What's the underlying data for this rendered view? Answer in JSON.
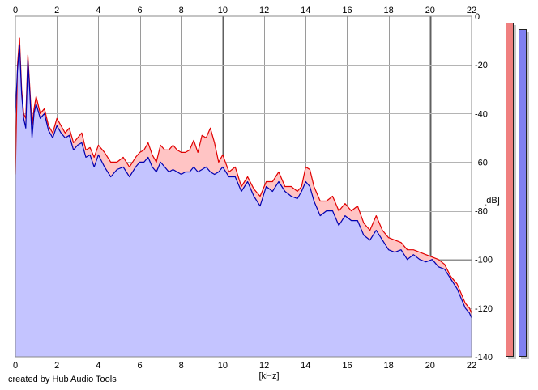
{
  "chart_data": {
    "type": "area",
    "x_label": "[kHz]",
    "y_label": "[dB]",
    "xlim": [
      0,
      22
    ],
    "ylim": [
      -140,
      0
    ],
    "x_ticks": [
      0,
      2,
      4,
      6,
      8,
      10,
      12,
      14,
      16,
      18,
      20,
      22
    ],
    "x_tick_labels": [
      "0",
      "2",
      "4",
      "6",
      "8",
      "10",
      "12",
      "14",
      "16",
      "18",
      "20",
      "22"
    ],
    "y_ticks": [
      0,
      -20,
      -40,
      -60,
      -80,
      -100,
      -120,
      -140
    ],
    "y_tick_labels": [
      "0",
      "-20",
      "-40",
      "-60",
      "-80",
      "-100",
      "-120",
      "-140"
    ],
    "grid": true,
    "x_ticks_top": true,
    "y_axis_side": "right",
    "series": [
      {
        "color": "#e00000",
        "fill": "#ffc4c4",
        "x": [
          0,
          0.1,
          0.2,
          0.3,
          0.4,
          0.5,
          0.6,
          0.7,
          0.8,
          0.9,
          1.0,
          1.2,
          1.4,
          1.6,
          1.8,
          2.0,
          2.2,
          2.4,
          2.6,
          2.8,
          3.0,
          3.2,
          3.4,
          3.6,
          3.8,
          4.0,
          4.3,
          4.6,
          4.9,
          5.2,
          5.5,
          5.8,
          6.0,
          6.2,
          6.4,
          6.6,
          6.8,
          7.0,
          7.2,
          7.4,
          7.6,
          7.8,
          8.0,
          8.2,
          8.4,
          8.6,
          8.8,
          9.0,
          9.2,
          9.4,
          9.6,
          9.8,
          10.0,
          10.3,
          10.6,
          10.9,
          11.2,
          11.5,
          11.8,
          12.1,
          12.4,
          12.7,
          13.0,
          13.3,
          13.6,
          13.8,
          14.0,
          14.2,
          14.4,
          14.7,
          15.0,
          15.3,
          15.6,
          15.9,
          16.2,
          16.5,
          16.8,
          17.1,
          17.4,
          17.7,
          18.0,
          18.3,
          18.6,
          18.9,
          19.2,
          19.5,
          19.8,
          20.1,
          20.4,
          20.7,
          21.0,
          21.3,
          21.5,
          21.7,
          21.9,
          22.0
        ],
        "y": [
          -65,
          -20,
          -9,
          -30,
          -40,
          -42,
          -16,
          -30,
          -45,
          -38,
          -33,
          -40,
          -38,
          -45,
          -48,
          -42,
          -45,
          -48,
          -46,
          -52,
          -50,
          -48,
          -55,
          -54,
          -58,
          -53,
          -56,
          -60,
          -60,
          -58,
          -62,
          -58,
          -56,
          -55,
          -52,
          -57,
          -60,
          -53,
          -55,
          -55,
          -53,
          -55,
          -56,
          -56,
          -55,
          -51,
          -56,
          -49,
          -50,
          -46,
          -52,
          -60,
          -57,
          -64,
          -62,
          -70,
          -66,
          -71,
          -74,
          -68,
          -68,
          -64,
          -70,
          -70,
          -72,
          -70,
          -62,
          -63,
          -70,
          -76,
          -76,
          -74,
          -80,
          -77,
          -80,
          -78,
          -85,
          -88,
          -82,
          -88,
          -91,
          -92,
          -93,
          -96,
          -96,
          -97,
          -98,
          -99,
          -100,
          -102,
          -107,
          -110,
          -114,
          -118,
          -120,
          -122
        ]
      },
      {
        "color": "#0000b0",
        "fill": "#c4c4ff",
        "x": [
          0,
          0.1,
          0.2,
          0.3,
          0.4,
          0.5,
          0.6,
          0.7,
          0.8,
          0.9,
          1.0,
          1.2,
          1.4,
          1.6,
          1.8,
          2.0,
          2.2,
          2.4,
          2.6,
          2.8,
          3.0,
          3.2,
          3.4,
          3.6,
          3.8,
          4.0,
          4.3,
          4.6,
          4.9,
          5.2,
          5.5,
          5.8,
          6.0,
          6.2,
          6.4,
          6.6,
          6.8,
          7.0,
          7.2,
          7.4,
          7.6,
          7.8,
          8.0,
          8.2,
          8.4,
          8.6,
          8.8,
          9.0,
          9.2,
          9.4,
          9.6,
          9.8,
          10.0,
          10.3,
          10.6,
          10.9,
          11.2,
          11.5,
          11.8,
          12.1,
          12.4,
          12.7,
          13.0,
          13.3,
          13.6,
          13.8,
          14.0,
          14.2,
          14.4,
          14.7,
          15.0,
          15.3,
          15.6,
          15.9,
          16.2,
          16.5,
          16.8,
          17.1,
          17.4,
          17.7,
          18.0,
          18.3,
          18.6,
          18.9,
          19.2,
          19.5,
          19.8,
          20.1,
          20.4,
          20.7,
          21.0,
          21.3,
          21.5,
          21.7,
          21.9,
          22.0
        ],
        "y": [
          -40,
          -22,
          -12,
          -32,
          -42,
          -46,
          -18,
          -32,
          -50,
          -40,
          -36,
          -42,
          -40,
          -47,
          -50,
          -45,
          -48,
          -50,
          -49,
          -55,
          -53,
          -52,
          -58,
          -57,
          -62,
          -57,
          -62,
          -66,
          -63,
          -62,
          -66,
          -62,
          -60,
          -60,
          -58,
          -62,
          -64,
          -60,
          -62,
          -64,
          -63,
          -64,
          -65,
          -64,
          -64,
          -62,
          -64,
          -63,
          -62,
          -64,
          -65,
          -64,
          -62,
          -66,
          -66,
          -72,
          -68,
          -74,
          -78,
          -70,
          -72,
          -68,
          -72,
          -74,
          -75,
          -72,
          -68,
          -70,
          -76,
          -82,
          -80,
          -80,
          -86,
          -82,
          -84,
          -84,
          -90,
          -92,
          -88,
          -92,
          -96,
          -97,
          -96,
          -100,
          -98,
          -100,
          -101,
          -100,
          -103,
          -104,
          -108,
          -112,
          -116,
          -120,
          -122,
          -124
        ]
      }
    ],
    "level_meters": [
      {
        "channel": "left",
        "color": "#f08080"
      },
      {
        "channel": "right",
        "color": "#8080f0"
      }
    ]
  },
  "footer": {
    "credit": "created by Hub Audio Tools"
  }
}
